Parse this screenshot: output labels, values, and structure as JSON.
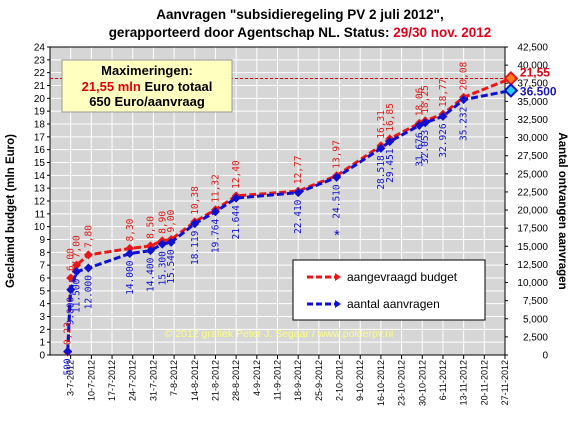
{
  "title_line1": "Aanvragen \"subsidieregeling  PV 2 juli 2012\",",
  "title_line2_black": "gerapporteerd door Agentschap NL. Status:",
  "title_line2_red": "29/30 nov. 2012",
  "info_box": {
    "heading": "Maximeringen:",
    "line2_red": "21,55 mln",
    "line2_black": "Euro totaal",
    "line3": "650 Euro/aanvraag"
  },
  "legend": {
    "budget": "aangevraagd budget",
    "count": "aantal aanvragen"
  },
  "copyright": "© 2012 grafiek Peter J. Segaar / www.polderpv.nl",
  "end_labels": {
    "budget": "21,55",
    "count": "36.500"
  },
  "stray_mark": "*",
  "colors": {
    "budget": "#e81818",
    "count": "#1010d0",
    "plot_bg": "#d6d6d6",
    "box_bg": "#ffffc0",
    "max_line": "#e00010",
    "end_blue": "#22d0f0"
  },
  "chart_data": {
    "type": "line",
    "ylabel": "Geclaimd budget (mln Euro)",
    "y2label": "Aantal ontvangen aanvragen",
    "ylim": [
      0,
      24
    ],
    "y2lim": [
      0,
      42500
    ],
    "yticks": [
      "0",
      "1",
      "2",
      "3",
      "4",
      "5",
      "6",
      "7",
      "8",
      "9",
      "10",
      "11",
      "12",
      "13",
      "14",
      "15",
      "16",
      "17",
      "18",
      "19",
      "20",
      "21",
      "22",
      "23",
      "24"
    ],
    "y2ticks": [
      "0",
      "2,500",
      "5,000",
      "7,500",
      "10,000",
      "12,500",
      "15,000",
      "17,500",
      "20,000",
      "22,500",
      "25,000",
      "27,500",
      "30,000",
      "32,500",
      "35,000",
      "37,500",
      "40,000",
      "42,500"
    ],
    "xlim": [
      "2012-07-03",
      "2012-11-27"
    ],
    "xticks": [
      "3-7-2012",
      "10-7-2012",
      "17-7-2012",
      "24-7-2012",
      "31-7-2012",
      "7-8-2012",
      "14-8-2012",
      "21-8-2012",
      "28-8-2012",
      "4-9-2012",
      "11-9-2012",
      "18-9-2012",
      "25-9-2012",
      "2-10-2012",
      "9-10-2012",
      "16-10-2012",
      "23-10-2012",
      "30-10-2012",
      "6-11-2012",
      "13-11-2012",
      "20-11-2012",
      "27-11-2012"
    ],
    "grid": true,
    "legend_position": "lower-right",
    "series": [
      {
        "name": "aangevraagd budget",
        "axis": "left",
        "points": [
          {
            "x": "2012-07-02",
            "y": 0.23,
            "label": "0,23"
          },
          {
            "x": "2012-07-03",
            "y": 6.0,
            "label": "6,00"
          },
          {
            "x": "2012-07-05",
            "y": 7.0,
            "label": "7,00"
          },
          {
            "x": "2012-07-09",
            "y": 7.8,
            "label": "7,80"
          },
          {
            "x": "2012-07-23",
            "y": 8.3,
            "label": "8,30"
          },
          {
            "x": "2012-07-30",
            "y": 8.5,
            "label": "8,50"
          },
          {
            "x": "2012-08-03",
            "y": 8.9,
            "label": "8,90"
          },
          {
            "x": "2012-08-06",
            "y": 9.0,
            "label": "9,00"
          },
          {
            "x": "2012-08-14",
            "y": 10.38,
            "label": "10,38"
          },
          {
            "x": "2012-08-21",
            "y": 11.32,
            "label": "11,32"
          },
          {
            "x": "2012-08-28",
            "y": 12.4,
            "label": "12,40"
          },
          {
            "x": "2012-09-18",
            "y": 12.77,
            "label": "12,77"
          },
          {
            "x": "2012-10-01",
            "y": 13.97,
            "label": "13,97"
          },
          {
            "x": "2012-10-16",
            "y": 16.31,
            "label": "16,31"
          },
          {
            "x": "2012-10-19",
            "y": 16.85,
            "label": "16,85"
          },
          {
            "x": "2012-10-29",
            "y": 18.06,
            "label": "18,06"
          },
          {
            "x": "2012-10-31",
            "y": 18.25,
            "label": "18,25"
          },
          {
            "x": "2012-11-06",
            "y": 18.77,
            "label": "18,77"
          },
          {
            "x": "2012-11-13",
            "y": 20.08,
            "label": "20,08"
          },
          {
            "x": "2012-11-29",
            "y": 21.55,
            "label": ""
          }
        ]
      },
      {
        "name": "aantal aanvragen",
        "axis": "right",
        "points": [
          {
            "x": "2012-07-02",
            "y": 500,
            "label": "500"
          },
          {
            "x": "2012-07-03",
            "y": 9000,
            "label": "9.000"
          },
          {
            "x": "2012-07-05",
            "y": 11500,
            "label": "11.500"
          },
          {
            "x": "2012-07-09",
            "y": 12000,
            "label": "12.000"
          },
          {
            "x": "2012-07-23",
            "y": 14000,
            "label": "14.000"
          },
          {
            "x": "2012-07-30",
            "y": 14400,
            "label": "14.400"
          },
          {
            "x": "2012-08-03",
            "y": 15300,
            "label": "15.300"
          },
          {
            "x": "2012-08-06",
            "y": 15540,
            "label": "15.540"
          },
          {
            "x": "2012-08-14",
            "y": 18119,
            "label": "18.119"
          },
          {
            "x": "2012-08-21",
            "y": 19764,
            "label": "19.764"
          },
          {
            "x": "2012-08-28",
            "y": 21644,
            "label": "21.644"
          },
          {
            "x": "2012-09-18",
            "y": 22410,
            "label": "22.410"
          },
          {
            "x": "2012-10-01",
            "y": 24510,
            "label": "24.510"
          },
          {
            "x": "2012-10-16",
            "y": 28518,
            "label": "28.518"
          },
          {
            "x": "2012-10-19",
            "y": 29451,
            "label": "29.451"
          },
          {
            "x": "2012-10-29",
            "y": 31676,
            "label": "31.676"
          },
          {
            "x": "2012-10-31",
            "y": 32053,
            "label": "32.053"
          },
          {
            "x": "2012-11-06",
            "y": 32926,
            "label": "32.926"
          },
          {
            "x": "2012-11-13",
            "y": 35232,
            "label": "35.232"
          },
          {
            "x": "2012-11-29",
            "y": 36500,
            "label": ""
          }
        ]
      }
    ]
  }
}
